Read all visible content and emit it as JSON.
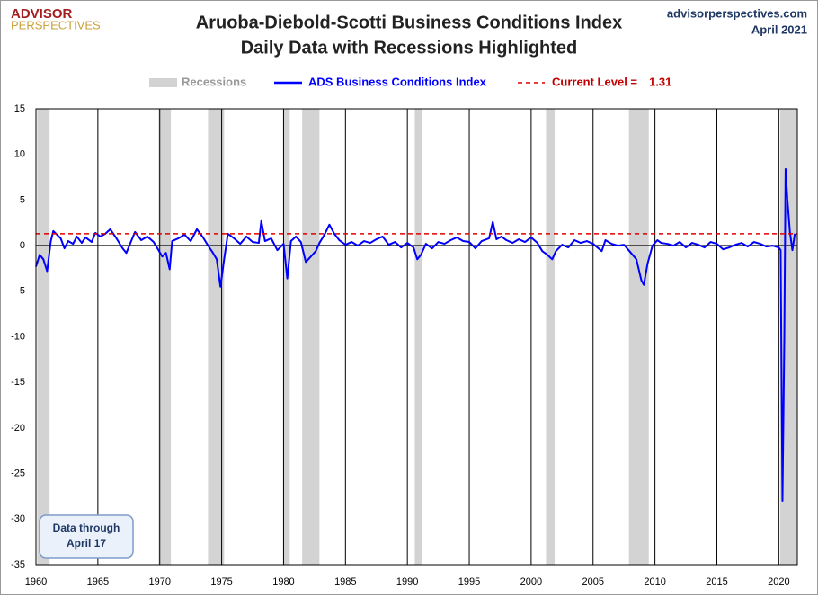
{
  "chart_data": {
    "type": "line",
    "title": "Aruoba-Diebold-Scotti Business Conditions Index",
    "subtitle": "Daily Data with Recessions Highlighted",
    "logo": [
      "ADVISOR",
      "PERSPECTIVES"
    ],
    "source": "advisorperspectives.com",
    "date": "April 2021",
    "annotation": [
      "Data through",
      "April 17"
    ],
    "xlim": [
      1960,
      2021.5
    ],
    "xticks": [
      1960,
      1965,
      1970,
      1975,
      1980,
      1985,
      1990,
      1995,
      2000,
      2005,
      2010,
      2015,
      2020
    ],
    "ylim": [
      -35,
      15
    ],
    "yticks": [
      -35,
      -30,
      -25,
      -20,
      -15,
      -10,
      -5,
      0,
      5,
      10,
      15
    ],
    "grid": "x",
    "recessions": {
      "name": "Recessions",
      "color": "#d3d3d3",
      "periods": [
        [
          1960.1,
          1961.1
        ],
        [
          1969.9,
          1970.9
        ],
        [
          1973.9,
          1975.2
        ],
        [
          1980.0,
          1980.5
        ],
        [
          1981.5,
          1982.9
        ],
        [
          1990.6,
          1991.2
        ],
        [
          2001.2,
          2001.9
        ],
        [
          2007.9,
          2009.5
        ],
        [
          2020.1,
          2021.5
        ]
      ]
    },
    "reference_line": {
      "name": "Current Level =",
      "value": 1.31,
      "color": "#e00000"
    },
    "x": [
      1960.0,
      1960.3,
      1960.6,
      1960.9,
      1961.2,
      1961.4,
      1961.7,
      1962.0,
      1962.3,
      1962.6,
      1963.0,
      1963.3,
      1963.7,
      1964.0,
      1964.5,
      1964.8,
      1965.2,
      1965.6,
      1966.0,
      1966.5,
      1967.0,
      1967.3,
      1967.6,
      1968.0,
      1968.5,
      1969.0,
      1969.5,
      1969.9,
      1970.2,
      1970.5,
      1970.8,
      1971.0,
      1971.5,
      1972.0,
      1972.5,
      1973.0,
      1973.5,
      1973.9,
      1974.3,
      1974.6,
      1974.9,
      1975.2,
      1975.5,
      1976.0,
      1976.5,
      1977.0,
      1977.5,
      1978.0,
      1978.2,
      1978.5,
      1979.0,
      1979.5,
      1980.0,
      1980.3,
      1980.6,
      1981.0,
      1981.4,
      1981.8,
      1982.2,
      1982.6,
      1982.9,
      1983.3,
      1983.7,
      1984.1,
      1984.5,
      1985.0,
      1985.5,
      1986.0,
      1986.5,
      1987.0,
      1987.5,
      1988.0,
      1988.5,
      1989.0,
      1989.5,
      1990.0,
      1990.5,
      1990.8,
      1991.1,
      1991.5,
      1992.0,
      1992.5,
      1993.0,
      1993.5,
      1994.0,
      1994.5,
      1995.0,
      1995.5,
      1996.0,
      1996.6,
      1996.9,
      1997.2,
      1997.6,
      1998.0,
      1998.5,
      1999.0,
      1999.5,
      2000.0,
      2000.5,
      2000.9,
      2001.3,
      2001.7,
      2002.0,
      2002.5,
      2003.0,
      2003.5,
      2004.0,
      2004.5,
      2005.0,
      2005.7,
      2006.0,
      2006.5,
      2007.0,
      2007.5,
      2008.0,
      2008.5,
      2008.9,
      2009.1,
      2009.4,
      2009.8,
      2010.2,
      2010.5,
      2011.0,
      2011.5,
      2012.0,
      2012.5,
      2013.0,
      2013.5,
      2014.0,
      2014.5,
      2015.0,
      2015.5,
      2016.0,
      2016.5,
      2017.0,
      2017.5,
      2018.0,
      2018.5,
      2019.0,
      2019.5,
      2020.0,
      2020.15,
      2020.3,
      2020.45,
      2020.55,
      2020.7,
      2020.9,
      2021.1,
      2021.3
    ],
    "series": [
      {
        "name": "ADS Business Conditions Index",
        "color": "#0000ff",
        "values": [
          -2.3,
          -1.0,
          -1.5,
          -2.8,
          0.5,
          1.6,
          1.2,
          0.8,
          -0.3,
          0.5,
          0.2,
          1.0,
          0.3,
          0.9,
          0.4,
          1.4,
          1.0,
          1.3,
          1.8,
          0.8,
          -0.3,
          -0.8,
          0.2,
          1.5,
          0.6,
          1.0,
          0.4,
          -0.5,
          -1.2,
          -0.8,
          -2.6,
          0.5,
          0.8,
          1.2,
          0.5,
          1.8,
          0.9,
          0.0,
          -0.8,
          -1.5,
          -4.5,
          -1.5,
          1.3,
          0.8,
          0.2,
          1.0,
          0.4,
          0.3,
          2.7,
          0.5,
          0.8,
          -0.5,
          0.2,
          -3.6,
          0.5,
          1.0,
          0.4,
          -1.8,
          -1.2,
          -0.6,
          0.3,
          1.2,
          2.3,
          1.3,
          0.6,
          0.1,
          0.4,
          0.0,
          0.5,
          0.3,
          0.7,
          1.0,
          0.1,
          0.4,
          -0.2,
          0.3,
          -0.2,
          -1.5,
          -1.0,
          0.2,
          -0.3,
          0.4,
          0.2,
          0.6,
          0.9,
          0.5,
          0.4,
          -0.3,
          0.5,
          0.8,
          2.6,
          0.7,
          1.0,
          0.6,
          0.3,
          0.7,
          0.4,
          0.9,
          0.3,
          -0.6,
          -1.0,
          -1.5,
          -0.6,
          0.1,
          -0.2,
          0.6,
          0.3,
          0.5,
          0.2,
          -0.6,
          0.6,
          0.2,
          0.0,
          0.1,
          -0.7,
          -1.5,
          -3.8,
          -4.3,
          -2.0,
          0.0,
          0.6,
          0.3,
          0.2,
          0.0,
          0.4,
          -0.2,
          0.3,
          0.1,
          -0.2,
          0.4,
          0.2,
          -0.4,
          -0.2,
          0.1,
          0.3,
          -0.1,
          0.4,
          0.2,
          -0.1,
          0.0,
          -0.2,
          -0.5,
          -28.0,
          -10.0,
          8.4,
          5.0,
          1.5,
          -0.5,
          1.31
        ]
      }
    ]
  }
}
